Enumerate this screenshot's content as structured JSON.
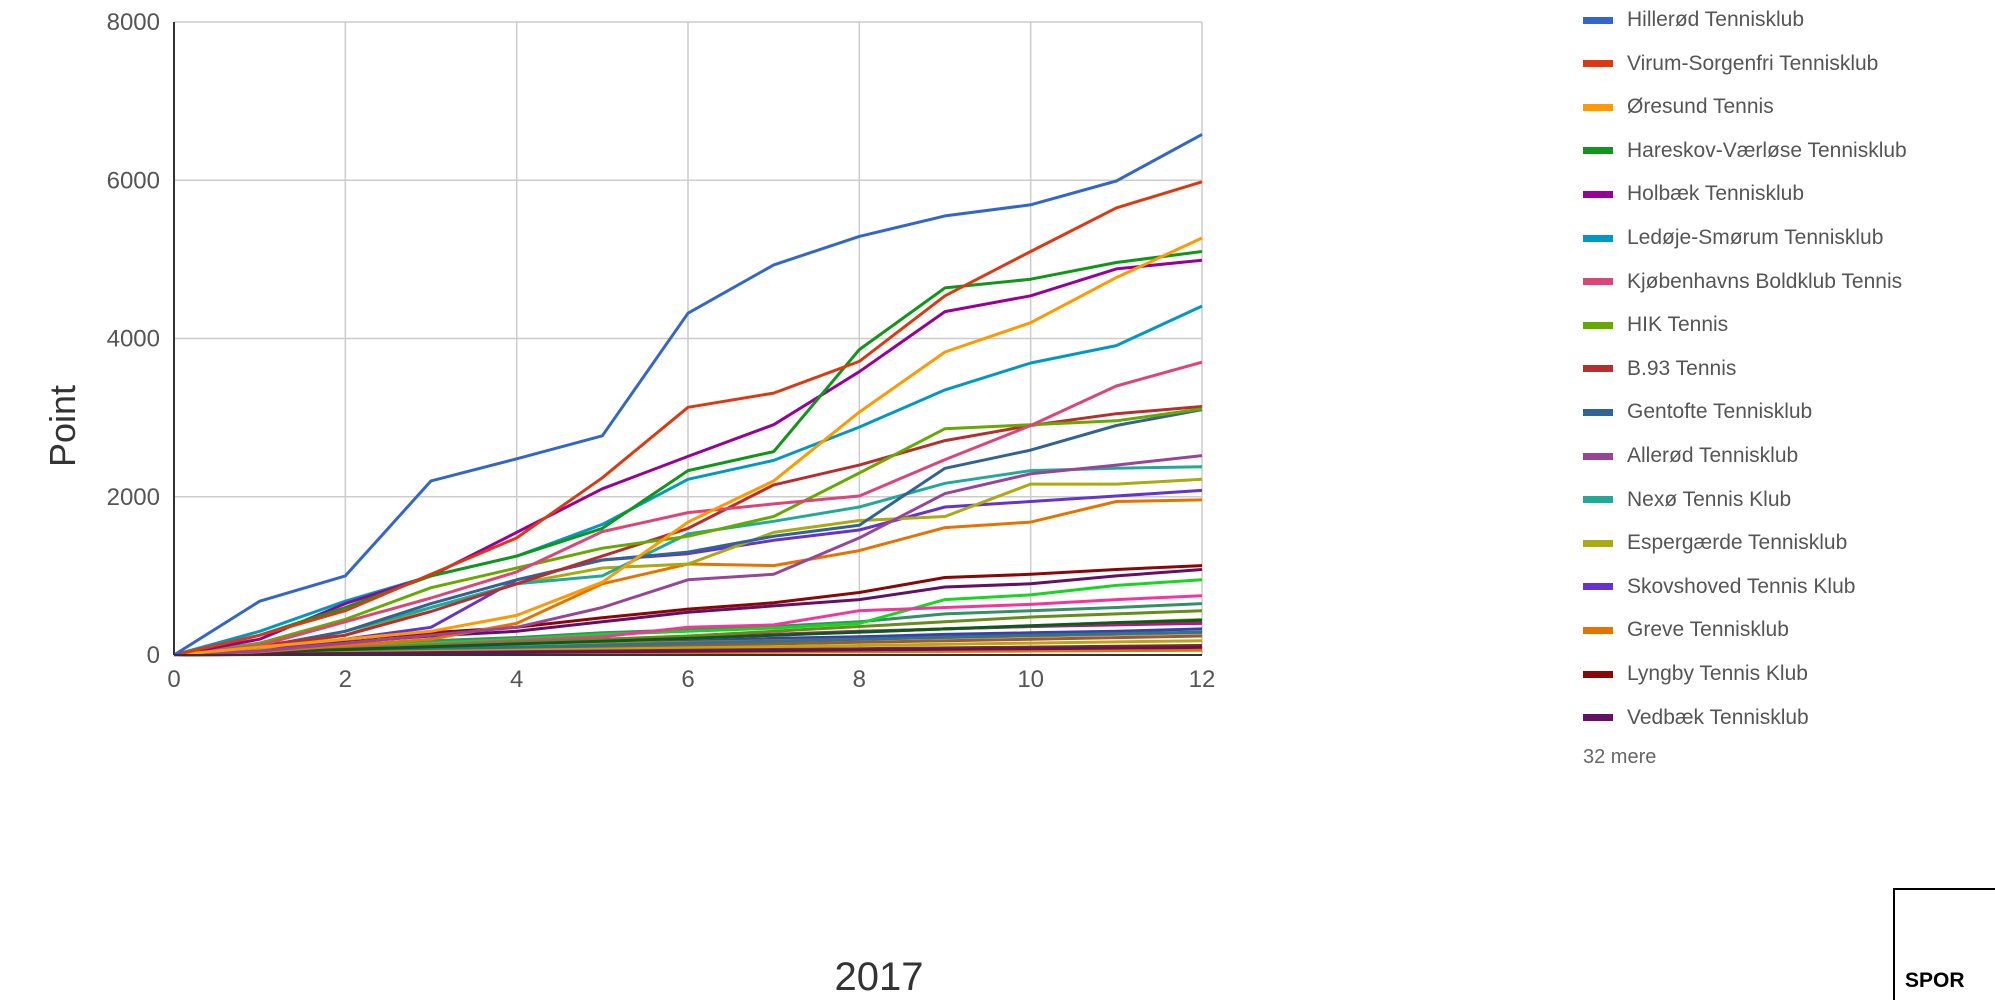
{
  "chart_data": {
    "type": "line",
    "xlabel": "2017",
    "ylabel": "Point",
    "xlim": [
      0,
      12
    ],
    "ylim": [
      0,
      8000
    ],
    "x_ticks": [
      "0",
      "2",
      "4",
      "6",
      "8",
      "10",
      "12"
    ],
    "y_ticks": [
      "0",
      "2000",
      "4000",
      "6000",
      "8000"
    ],
    "grid": true,
    "legend_position": "right",
    "x": [
      0,
      1,
      2,
      3,
      4,
      5,
      6,
      7,
      8,
      9,
      10,
      11,
      12
    ],
    "series": [
      {
        "name": "Hillerød Tennisklub",
        "color": "#3366cc",
        "values": [
          0,
          680,
          1000,
          2200,
          2480,
          2770,
          4320,
          4930,
          5290,
          5550,
          5690,
          5990,
          6580
        ]
      },
      {
        "name": "Virum-Sorgenfri Tennisklub",
        "color": "#dc3912",
        "values": [
          0,
          250,
          560,
          1020,
          1480,
          2240,
          3130,
          3310,
          3710,
          4540,
          5100,
          5650,
          5980
        ]
      },
      {
        "name": "Øresund Tennis",
        "color": "#ff9900",
        "values": [
          0,
          100,
          200,
          300,
          500,
          920,
          1680,
          2200,
          3070,
          3830,
          4200,
          4770,
          5270
        ]
      },
      {
        "name": "Hareskov-Værløse Tennisklub",
        "color": "#109618",
        "values": [
          0,
          250,
          600,
          1000,
          1250,
          1600,
          2330,
          2570,
          3860,
          4640,
          4750,
          4960,
          5100
        ]
      },
      {
        "name": "Holbæk Tennisklub",
        "color": "#990099",
        "values": [
          0,
          200,
          650,
          1000,
          1550,
          2100,
          2510,
          2910,
          3580,
          4340,
          4540,
          4880,
          4990
        ]
      },
      {
        "name": "Ledøje-Smørum Tennisklub",
        "color": "#0099c6",
        "values": [
          0,
          300,
          680,
          1000,
          1250,
          1650,
          2220,
          2460,
          2880,
          3350,
          3690,
          3910,
          4410
        ]
      },
      {
        "name": "Kjøbenhavns Boldklub Tennis",
        "color": "#dd4477",
        "values": [
          0,
          120,
          420,
          720,
          1050,
          1560,
          1800,
          1910,
          2010,
          2470,
          2900,
          3400,
          3700
        ]
      },
      {
        "name": "HIK Tennis",
        "color": "#66aa00",
        "values": [
          0,
          150,
          450,
          850,
          1100,
          1350,
          1500,
          1750,
          2300,
          2860,
          2910,
          2960,
          3110
        ]
      },
      {
        "name": "B.93 Tennis",
        "color": "#b82e2e",
        "values": [
          0,
          120,
          250,
          550,
          900,
          1250,
          1600,
          2150,
          2400,
          2710,
          2900,
          3050,
          3140
        ]
      },
      {
        "name": "Gentofte Tennisklub",
        "color": "#316395",
        "values": [
          0,
          100,
          300,
          650,
          950,
          1200,
          1300,
          1500,
          1640,
          2360,
          2590,
          2900,
          3100
        ]
      },
      {
        "name": "Allerød Tennisklub",
        "color": "#994499",
        "values": [
          0,
          50,
          150,
          250,
          350,
          600,
          950,
          1020,
          1480,
          2040,
          2290,
          2400,
          2520
        ]
      },
      {
        "name": "Nexø Tennis Klub",
        "color": "#22aa99",
        "values": [
          0,
          100,
          300,
          600,
          900,
          1000,
          1530,
          1690,
          1870,
          2170,
          2330,
          2360,
          2380
        ]
      },
      {
        "name": "Espergærde Tennisklub",
        "color": "#aaaa11",
        "values": [
          0,
          80,
          250,
          600,
          900,
          1100,
          1150,
          1550,
          1700,
          1750,
          2160,
          2160,
          2220
        ]
      },
      {
        "name": "Skovshoved Tennis Klub",
        "color": "#6633cc",
        "values": [
          0,
          50,
          200,
          350,
          950,
          1200,
          1280,
          1450,
          1580,
          1870,
          1940,
          2010,
          2080
        ]
      },
      {
        "name": "Greve Tennisklub",
        "color": "#e67300",
        "values": [
          0,
          40,
          120,
          200,
          400,
          900,
          1150,
          1130,
          1320,
          1610,
          1680,
          1940,
          1960
        ]
      },
      {
        "name": "Lyngby Tennis Klub",
        "color": "#8b0707",
        "values": [
          0,
          80,
          200,
          280,
          350,
          470,
          580,
          660,
          790,
          980,
          1020,
          1080,
          1130
        ]
      },
      {
        "name": "Vedbæk Tennisklub",
        "color": "#651067",
        "values": [
          0,
          60,
          160,
          240,
          300,
          420,
          540,
          620,
          700,
          860,
          900,
          1000,
          1080
        ]
      }
    ],
    "unlabeled_series": [
      {
        "color": "#329262",
        "values": [
          0,
          60,
          120,
          180,
          220,
          280,
          320,
          360,
          420,
          520,
          560,
          600,
          650
        ]
      },
      {
        "color": "#5574a6",
        "values": [
          0,
          40,
          80,
          120,
          160,
          200,
          230,
          260,
          290,
          330,
          360,
          390,
          420
        ]
      },
      {
        "color": "#3b3eac",
        "values": [
          0,
          30,
          60,
          90,
          120,
          150,
          180,
          210,
          230,
          260,
          280,
          300,
          330
        ]
      },
      {
        "color": "#b77322",
        "values": [
          0,
          20,
          50,
          80,
          110,
          140,
          160,
          180,
          200,
          220,
          240,
          260,
          280
        ]
      },
      {
        "color": "#16d620",
        "values": [
          0,
          50,
          100,
          150,
          200,
          260,
          300,
          340,
          400,
          700,
          760,
          880,
          950
        ]
      },
      {
        "color": "#b91383",
        "values": [
          0,
          30,
          70,
          110,
          150,
          190,
          230,
          260,
          300,
          330,
          360,
          380,
          400
        ]
      },
      {
        "color": "#f4359e",
        "values": [
          0,
          40,
          90,
          130,
          180,
          230,
          350,
          380,
          560,
          600,
          640,
          700,
          750
        ]
      },
      {
        "color": "#9c5935",
        "values": [
          0,
          20,
          40,
          60,
          80,
          100,
          120,
          140,
          160,
          180,
          200,
          220,
          240
        ]
      },
      {
        "color": "#a9c413",
        "values": [
          0,
          30,
          60,
          90,
          130,
          170,
          210,
          250,
          290,
          330,
          370,
          410,
          450
        ]
      },
      {
        "color": "#2a778d",
        "values": [
          0,
          25,
          50,
          75,
          100,
          125,
          150,
          175,
          200,
          225,
          250,
          270,
          290
        ]
      },
      {
        "color": "#668d1c",
        "values": [
          0,
          40,
          80,
          120,
          160,
          200,
          240,
          300,
          360,
          420,
          480,
          520,
          560
        ]
      },
      {
        "color": "#bea413",
        "values": [
          0,
          15,
          30,
          45,
          60,
          75,
          90,
          105,
          120,
          135,
          150,
          165,
          180
        ]
      },
      {
        "color": "#0c5922",
        "values": [
          0,
          35,
          70,
          105,
          140,
          175,
          210,
          250,
          290,
          330,
          370,
          410,
          440
        ]
      },
      {
        "color": "#743411",
        "values": [
          0,
          10,
          20,
          30,
          40,
          50,
          60,
          70,
          80,
          90,
          100,
          110,
          120
        ]
      },
      {
        "color": "#e67300",
        "values": [
          0,
          5,
          10,
          15,
          20,
          25,
          30,
          35,
          40,
          45,
          50,
          55,
          60
        ]
      },
      {
        "color": "#651067",
        "values": [
          0,
          8,
          16,
          24,
          32,
          40,
          48,
          56,
          64,
          72,
          80,
          88,
          96
        ]
      }
    ],
    "legend_more": "32 mere"
  },
  "corner_label": "SPOR"
}
